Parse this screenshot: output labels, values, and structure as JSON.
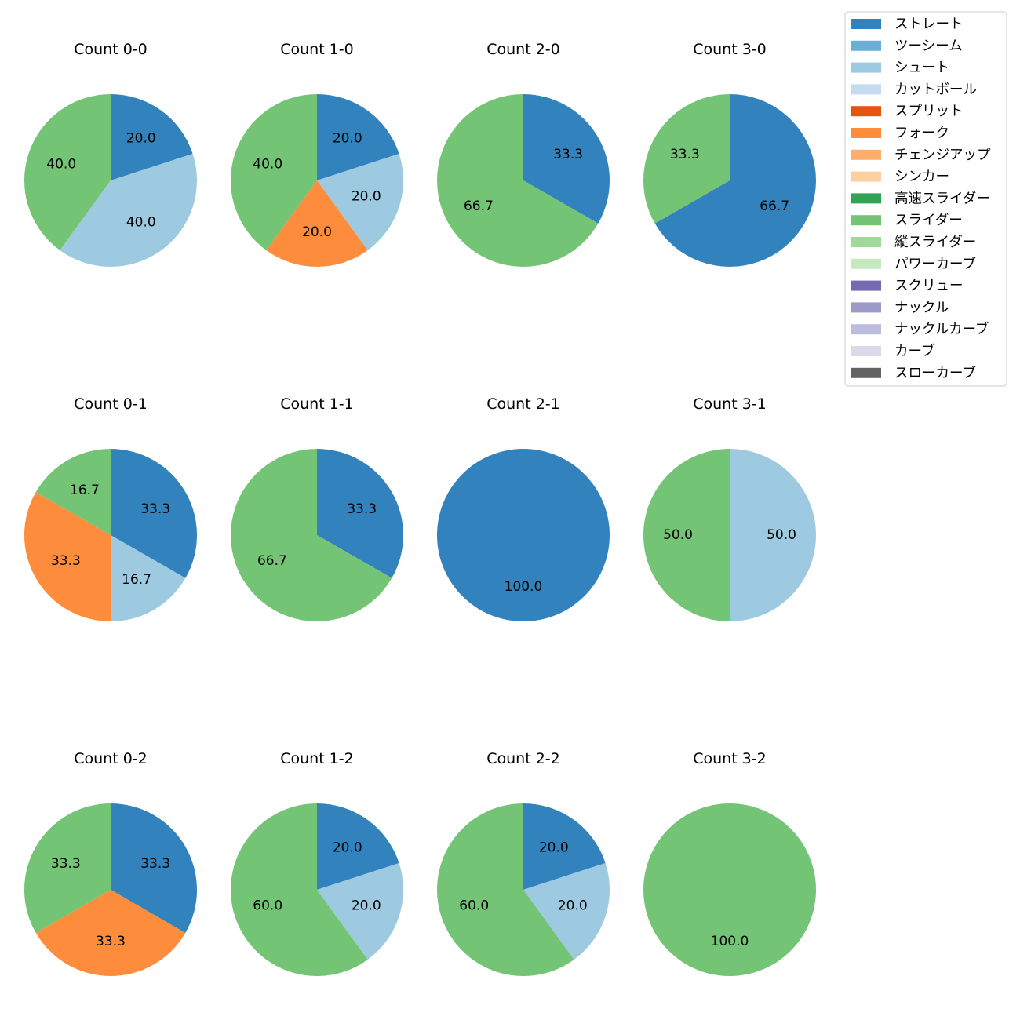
{
  "chart_data": {
    "type": "pie",
    "legend_placement": "top-right",
    "legend": [
      {
        "name": "ストレート",
        "color": "#3182bd"
      },
      {
        "name": "ツーシーム",
        "color": "#6baed6"
      },
      {
        "name": "シュート",
        "color": "#9ecae1"
      },
      {
        "name": "カットボール",
        "color": "#c6dbef"
      },
      {
        "name": "スプリット",
        "color": "#e6550d"
      },
      {
        "name": "フォーク",
        "color": "#fd8d3c"
      },
      {
        "name": "チェンジアップ",
        "color": "#fdae6b"
      },
      {
        "name": "シンカー",
        "color": "#fdd0a2"
      },
      {
        "name": "高速スライダー",
        "color": "#31a354"
      },
      {
        "name": "スライダー",
        "color": "#74c476"
      },
      {
        "name": "縦スライダー",
        "color": "#a1d99b"
      },
      {
        "name": "パワーカーブ",
        "color": "#c7e9c0"
      },
      {
        "name": "スクリュー",
        "color": "#756bb1"
      },
      {
        "name": "ナックル",
        "color": "#9e9ac8"
      },
      {
        "name": "ナックルカーブ",
        "color": "#bcbddc"
      },
      {
        "name": "カーブ",
        "color": "#dadaeb"
      },
      {
        "name": "スローカーブ",
        "color": "#636363"
      }
    ],
    "charts": [
      {
        "title": "Count 0-0",
        "slices": [
          {
            "pitch": "ストレート",
            "value": 20.0,
            "label": "20.0"
          },
          {
            "pitch": "シュート",
            "value": 40.0,
            "label": "40.0"
          },
          {
            "pitch": "スライダー",
            "value": 40.0,
            "label": "40.0"
          }
        ]
      },
      {
        "title": "Count 1-0",
        "slices": [
          {
            "pitch": "ストレート",
            "value": 20.0,
            "label": "20.0"
          },
          {
            "pitch": "シュート",
            "value": 20.0,
            "label": "20.0"
          },
          {
            "pitch": "フォーク",
            "value": 20.0,
            "label": "20.0"
          },
          {
            "pitch": "スライダー",
            "value": 40.0,
            "label": "40.0"
          }
        ]
      },
      {
        "title": "Count 2-0",
        "slices": [
          {
            "pitch": "ストレート",
            "value": 33.3,
            "label": "33.3"
          },
          {
            "pitch": "スライダー",
            "value": 66.7,
            "label": "66.7"
          }
        ]
      },
      {
        "title": "Count 3-0",
        "slices": [
          {
            "pitch": "ストレート",
            "value": 66.7,
            "label": "66.7"
          },
          {
            "pitch": "スライダー",
            "value": 33.3,
            "label": "33.3"
          }
        ]
      },
      {
        "title": "Count 0-1",
        "slices": [
          {
            "pitch": "ストレート",
            "value": 33.3,
            "label": "33.3"
          },
          {
            "pitch": "シュート",
            "value": 16.7,
            "label": "16.7"
          },
          {
            "pitch": "フォーク",
            "value": 33.3,
            "label": "33.3"
          },
          {
            "pitch": "スライダー",
            "value": 16.7,
            "label": "16.7"
          }
        ]
      },
      {
        "title": "Count 1-1",
        "slices": [
          {
            "pitch": "ストレート",
            "value": 33.3,
            "label": "33.3"
          },
          {
            "pitch": "スライダー",
            "value": 66.7,
            "label": "66.7"
          }
        ]
      },
      {
        "title": "Count 2-1",
        "slices": [
          {
            "pitch": "ストレート",
            "value": 100.0,
            "label": "100.0"
          }
        ]
      },
      {
        "title": "Count 3-1",
        "slices": [
          {
            "pitch": "シュート",
            "value": 50.0,
            "label": "50.0"
          },
          {
            "pitch": "スライダー",
            "value": 50.0,
            "label": "50.0"
          }
        ]
      },
      {
        "title": "Count 0-2",
        "slices": [
          {
            "pitch": "ストレート",
            "value": 33.3,
            "label": "33.3"
          },
          {
            "pitch": "フォーク",
            "value": 33.3,
            "label": "33.3"
          },
          {
            "pitch": "スライダー",
            "value": 33.3,
            "label": "33.3"
          }
        ]
      },
      {
        "title": "Count 1-2",
        "slices": [
          {
            "pitch": "ストレート",
            "value": 20.0,
            "label": "20.0"
          },
          {
            "pitch": "シュート",
            "value": 20.0,
            "label": "20.0"
          },
          {
            "pitch": "スライダー",
            "value": 60.0,
            "label": "60.0"
          }
        ]
      },
      {
        "title": "Count 2-2",
        "slices": [
          {
            "pitch": "ストレート",
            "value": 20.0,
            "label": "20.0"
          },
          {
            "pitch": "シュート",
            "value": 20.0,
            "label": "20.0"
          },
          {
            "pitch": "スライダー",
            "value": 60.0,
            "label": "60.0"
          }
        ]
      },
      {
        "title": "Count 3-2",
        "slices": [
          {
            "pitch": "スライダー",
            "value": 100.0,
            "label": "100.0"
          }
        ]
      }
    ]
  }
}
